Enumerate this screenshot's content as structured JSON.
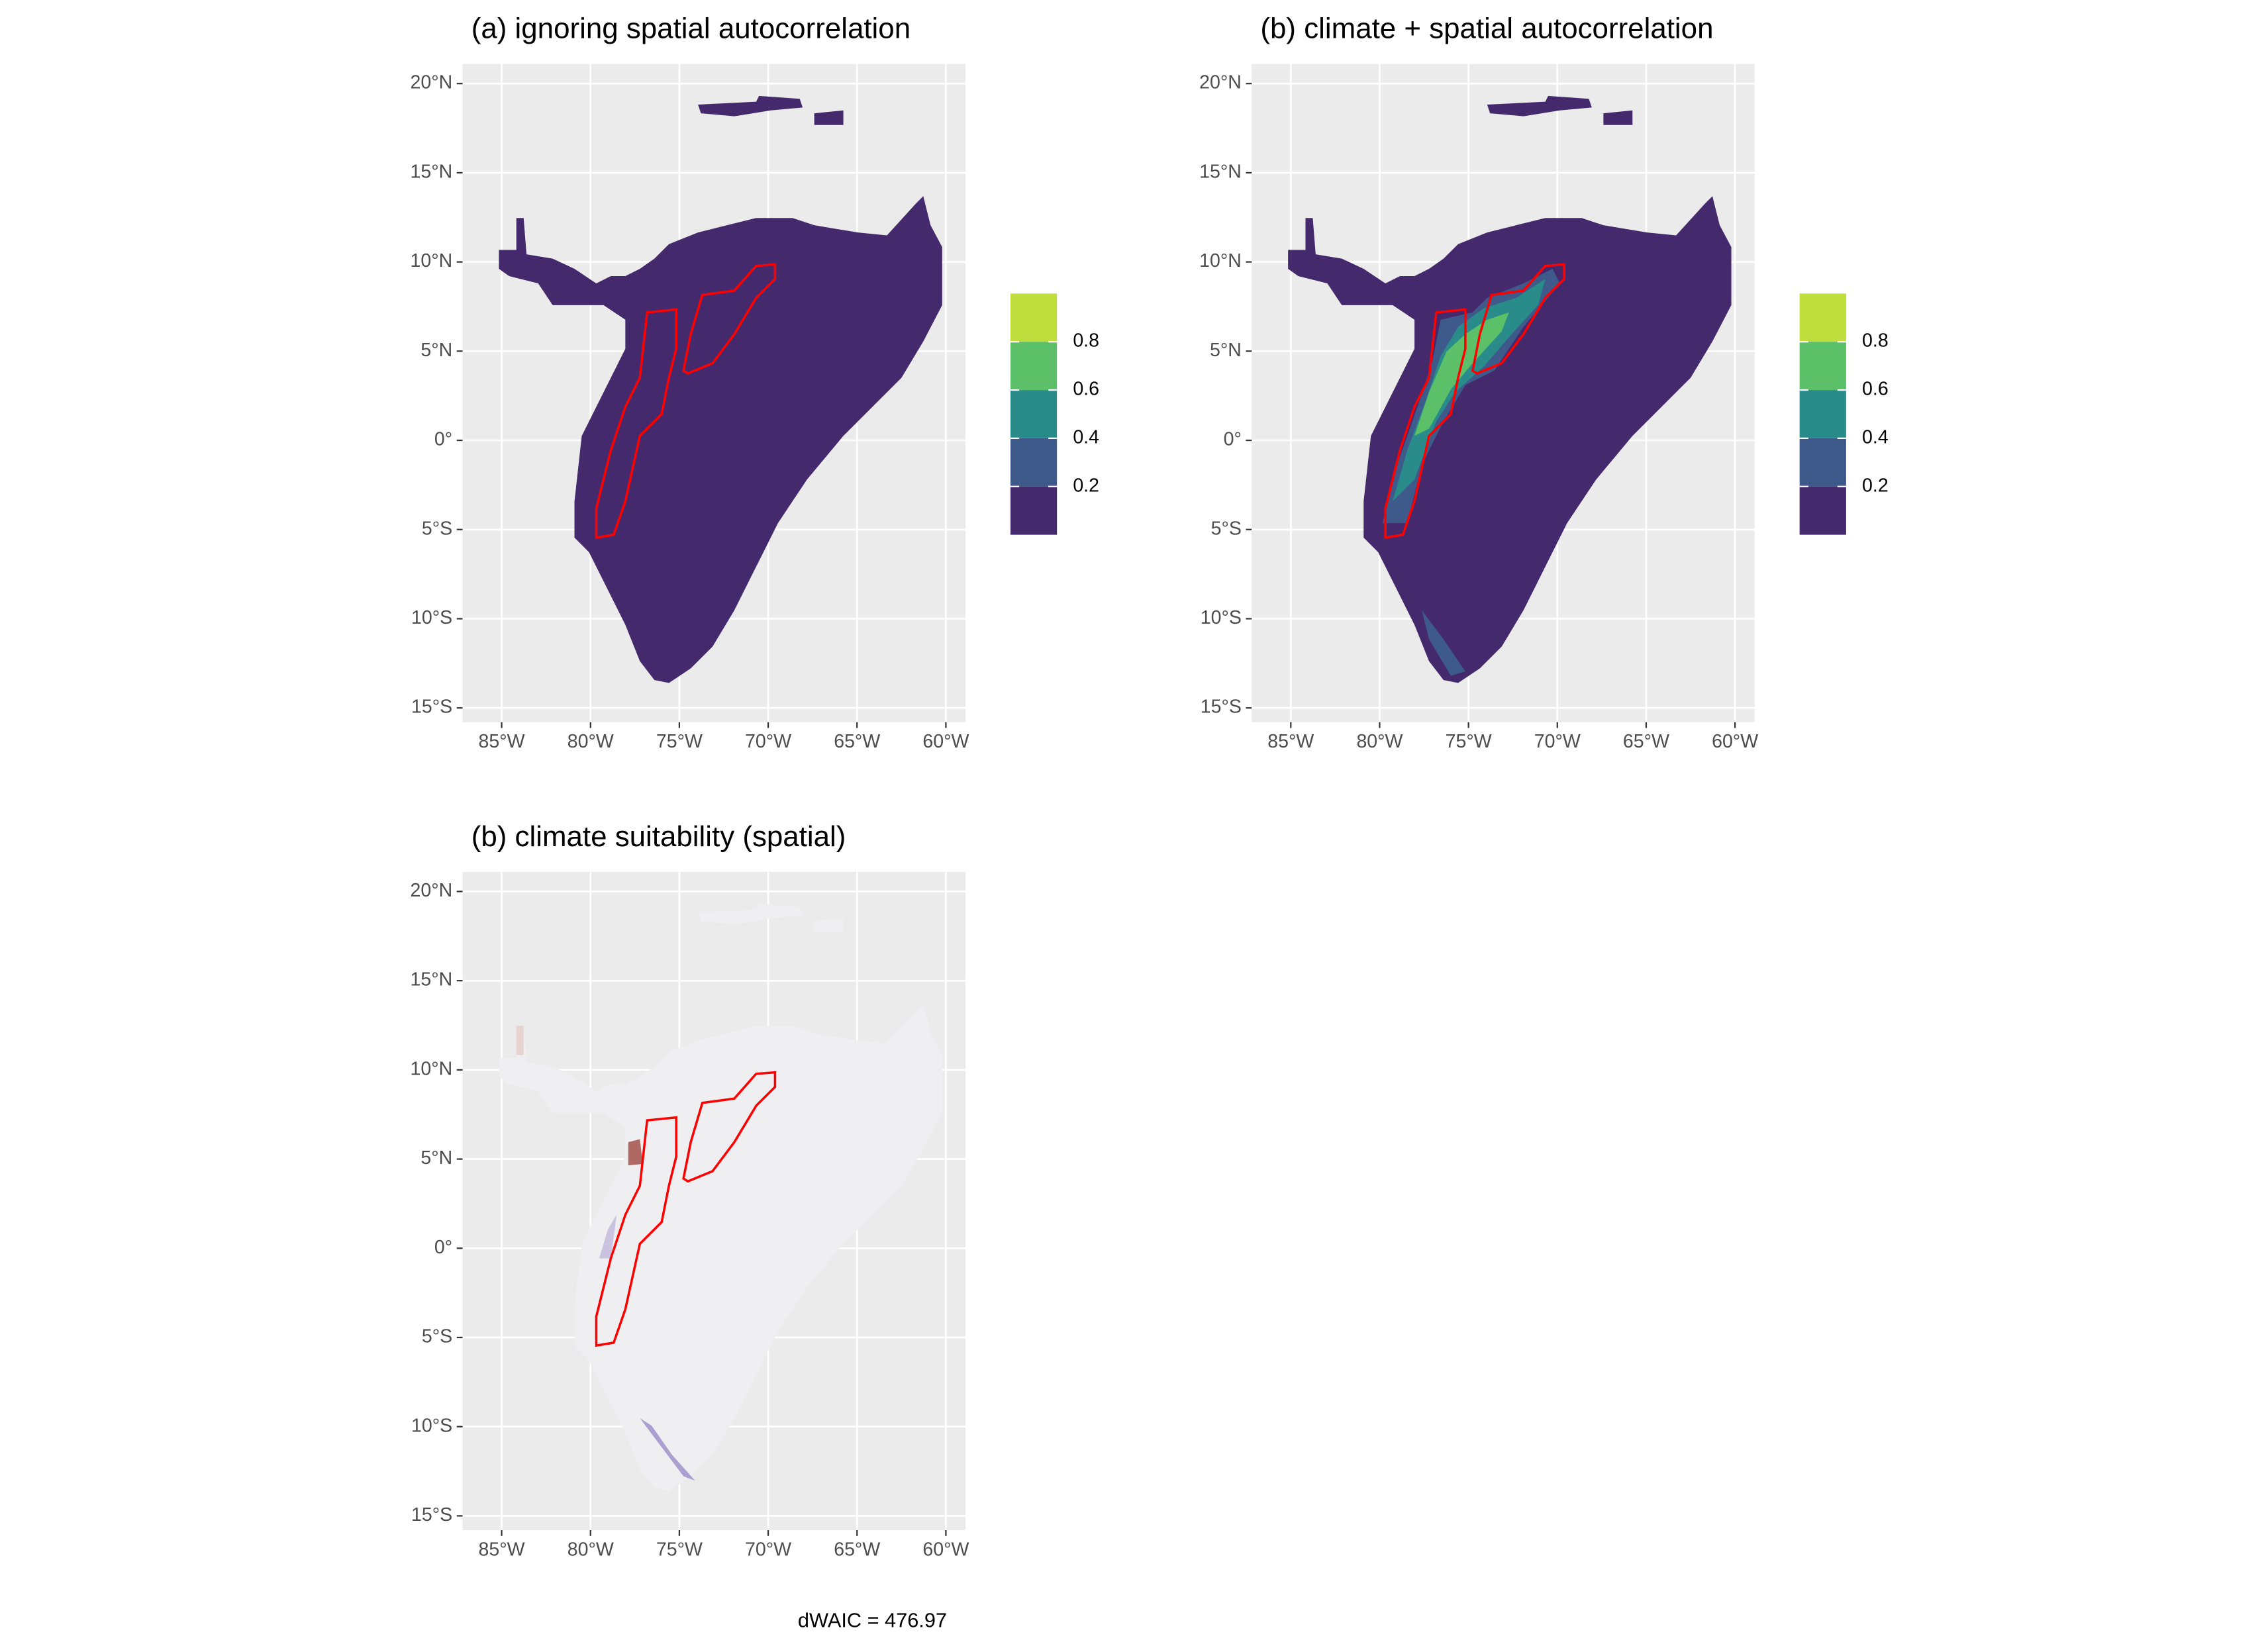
{
  "panels": [
    {
      "title": "(a) ignoring spatial autocorrelation",
      "fill": "#45296d",
      "show_legend": true
    },
    {
      "title": "(b) climate + spatial autocorrelation",
      "fill": "#45296d",
      "show_legend": true
    },
    {
      "title": "(b) climate suitability (spatial)",
      "fill": "#efeef1",
      "show_legend": false
    }
  ],
  "xlim": [
    -87.2,
    -58.9
  ],
  "ylim": [
    -15.8,
    21.1
  ],
  "xticks": [
    {
      "value": -85,
      "label": "85°W"
    },
    {
      "value": -80,
      "label": "80°W"
    },
    {
      "value": -75,
      "label": "75°W"
    },
    {
      "value": -70,
      "label": "70°W"
    },
    {
      "value": -65,
      "label": "65°W"
    },
    {
      "value": -60,
      "label": "60°W"
    }
  ],
  "yticks": [
    {
      "value": 20,
      "label": "20°N"
    },
    {
      "value": 15,
      "label": "15°N"
    },
    {
      "value": 10,
      "label": "10°N"
    },
    {
      "value": 5,
      "label": "5°N"
    },
    {
      "value": 0,
      "label": "0°"
    },
    {
      "value": -5,
      "label": "5°S"
    },
    {
      "value": -10,
      "label": "10°S"
    },
    {
      "value": -15,
      "label": "15°S"
    }
  ],
  "legend": {
    "bins": [
      0,
      0.2,
      0.4,
      0.6,
      0.8,
      1
    ],
    "colors": [
      "#45296d",
      "#3d5a8a",
      "#2a8c8a",
      "#5cc068",
      "#c0dd3e"
    ],
    "ticks": [
      0.2,
      0.4,
      0.6,
      0.8
    ]
  },
  "note": "dWAIC = 476.97"
}
